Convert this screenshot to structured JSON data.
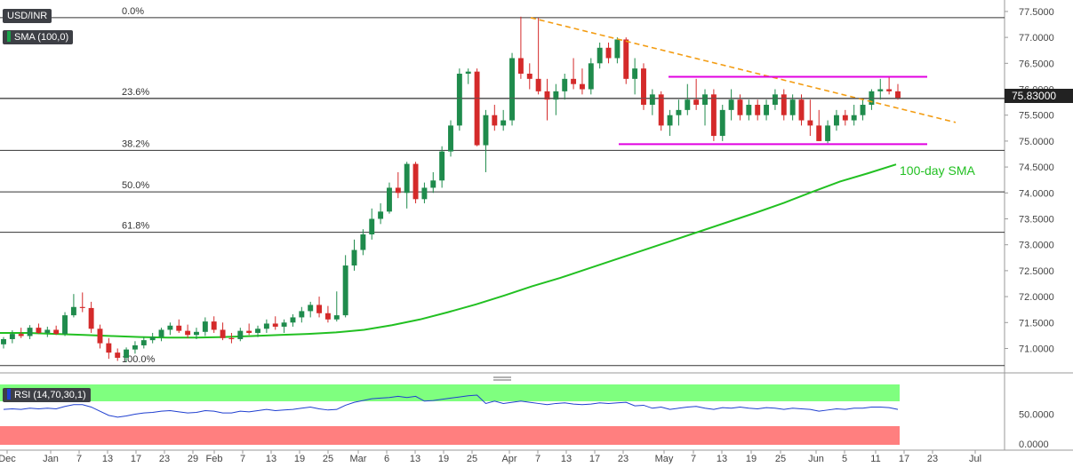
{
  "symbol": "USD/INR",
  "indicators": {
    "sma_label": "SMA (100,0)",
    "rsi_label": "RSI (14,70,30,1)"
  },
  "colors": {
    "up": "#1f8b4c",
    "down": "#d42a2a",
    "sma": "#22c022",
    "trend": "#f39c12",
    "channel": "#e000e0",
    "rsi_line": "#1f3fd0",
    "rsi_overbought_zone": "#7fff7f",
    "rsi_oversold_zone": "#ff7f7f",
    "price_tag": "#222222"
  },
  "chart_data": [
    {
      "type": "candlestick",
      "title": "USD/INR",
      "ylim": [
        70.7,
        77.55
      ],
      "y_ticks": [
        "71.0000",
        "71.5000",
        "72.0000",
        "72.5000",
        "73.0000",
        "73.5000",
        "74.0000",
        "74.5000",
        "75.0000",
        "75.5000",
        "76.0000",
        "76.5000",
        "77.0000",
        "77.5000"
      ],
      "x_ticks": [
        "Dec",
        "Jan",
        "7",
        "13",
        "17",
        "23",
        "29",
        "Feb",
        "7",
        "13",
        "19",
        "25",
        "Mar",
        "6",
        "13",
        "19",
        "25",
        "Apr",
        "7",
        "13",
        "17",
        "23",
        "May",
        "7",
        "13",
        "19",
        "25",
        "Jun",
        "5",
        "11",
        "17",
        "23",
        "Jul"
      ],
      "last_price": "75.83000",
      "fibonacci": [
        {
          "label": "0.0%",
          "value": 77.38
        },
        {
          "label": "23.6%",
          "value": 75.82
        },
        {
          "label": "38.2%",
          "value": 74.82
        },
        {
          "label": "50.0%",
          "value": 74.02
        },
        {
          "label": "61.8%",
          "value": 73.24
        },
        {
          "label": "100.0%",
          "value": 70.67
        }
      ],
      "annotations": [
        {
          "label": "100-day SMA"
        }
      ],
      "trendline": {
        "from": 77.38,
        "to": 75.36
      },
      "channel": {
        "upper": 76.24,
        "lower": 74.94
      },
      "sma_100": [
        71.3,
        71.3,
        71.28,
        71.26,
        71.24,
        71.22,
        71.21,
        71.21,
        71.22,
        71.24,
        71.26,
        71.28,
        71.31,
        71.36,
        71.45,
        71.56,
        71.7,
        71.85,
        72.02,
        72.2,
        72.36,
        72.54,
        72.72,
        72.9,
        73.08,
        73.26,
        73.44,
        73.62,
        73.81,
        74.02,
        74.22,
        74.38,
        74.55
      ],
      "candles": [
        {
          "o": 71.08,
          "h": 71.22,
          "l": 71.0,
          "c": 71.18
        },
        {
          "o": 71.18,
          "h": 71.35,
          "l": 71.1,
          "c": 71.28
        },
        {
          "o": 71.28,
          "h": 71.4,
          "l": 71.2,
          "c": 71.24
        },
        {
          "o": 71.24,
          "h": 71.45,
          "l": 71.18,
          "c": 71.4
        },
        {
          "o": 71.4,
          "h": 71.48,
          "l": 71.28,
          "c": 71.3
        },
        {
          "o": 71.3,
          "h": 71.42,
          "l": 71.22,
          "c": 71.36
        },
        {
          "o": 71.36,
          "h": 71.44,
          "l": 71.26,
          "c": 71.28
        },
        {
          "o": 71.28,
          "h": 71.7,
          "l": 71.24,
          "c": 71.64
        },
        {
          "o": 71.64,
          "h": 72.05,
          "l": 71.6,
          "c": 71.8
        },
        {
          "o": 71.8,
          "h": 72.08,
          "l": 71.7,
          "c": 71.78
        },
        {
          "o": 71.78,
          "h": 71.9,
          "l": 71.3,
          "c": 71.38
        },
        {
          "o": 71.38,
          "h": 71.46,
          "l": 71.0,
          "c": 71.1
        },
        {
          "o": 71.1,
          "h": 71.2,
          "l": 70.8,
          "c": 70.92
        },
        {
          "o": 70.92,
          "h": 71.0,
          "l": 70.76,
          "c": 70.82
        },
        {
          "o": 70.82,
          "h": 71.02,
          "l": 70.74,
          "c": 70.98
        },
        {
          "o": 70.98,
          "h": 71.14,
          "l": 70.9,
          "c": 71.06
        },
        {
          "o": 71.06,
          "h": 71.22,
          "l": 71.0,
          "c": 71.16
        },
        {
          "o": 71.16,
          "h": 71.3,
          "l": 71.1,
          "c": 71.22
        },
        {
          "o": 71.22,
          "h": 71.4,
          "l": 71.14,
          "c": 71.36
        },
        {
          "o": 71.36,
          "h": 71.5,
          "l": 71.26,
          "c": 71.44
        },
        {
          "o": 71.44,
          "h": 71.56,
          "l": 71.3,
          "c": 71.34
        },
        {
          "o": 71.34,
          "h": 71.46,
          "l": 71.2,
          "c": 71.26
        },
        {
          "o": 71.26,
          "h": 71.4,
          "l": 71.18,
          "c": 71.32
        },
        {
          "o": 71.32,
          "h": 71.6,
          "l": 71.24,
          "c": 71.52
        },
        {
          "o": 71.52,
          "h": 71.62,
          "l": 71.3,
          "c": 71.36
        },
        {
          "o": 71.36,
          "h": 71.5,
          "l": 71.16,
          "c": 71.2
        },
        {
          "o": 71.2,
          "h": 71.3,
          "l": 71.1,
          "c": 71.18
        },
        {
          "o": 71.18,
          "h": 71.4,
          "l": 71.14,
          "c": 71.34
        },
        {
          "o": 71.34,
          "h": 71.48,
          "l": 71.26,
          "c": 71.3
        },
        {
          "o": 71.3,
          "h": 71.44,
          "l": 71.22,
          "c": 71.38
        },
        {
          "o": 71.38,
          "h": 71.56,
          "l": 71.3,
          "c": 71.48
        },
        {
          "o": 71.48,
          "h": 71.62,
          "l": 71.36,
          "c": 71.42
        },
        {
          "o": 71.42,
          "h": 71.56,
          "l": 71.3,
          "c": 71.5
        },
        {
          "o": 71.5,
          "h": 71.66,
          "l": 71.42,
          "c": 71.6
        },
        {
          "o": 71.6,
          "h": 71.8,
          "l": 71.5,
          "c": 71.72
        },
        {
          "o": 71.72,
          "h": 71.9,
          "l": 71.6,
          "c": 71.84
        },
        {
          "o": 71.84,
          "h": 72.0,
          "l": 71.6,
          "c": 71.68
        },
        {
          "o": 71.68,
          "h": 71.82,
          "l": 71.5,
          "c": 71.56
        },
        {
          "o": 71.56,
          "h": 72.1,
          "l": 71.52,
          "c": 71.64
        },
        {
          "o": 71.64,
          "h": 72.8,
          "l": 71.6,
          "c": 72.6
        },
        {
          "o": 72.6,
          "h": 73.1,
          "l": 72.5,
          "c": 72.9
        },
        {
          "o": 72.9,
          "h": 73.3,
          "l": 72.8,
          "c": 73.2
        },
        {
          "o": 73.2,
          "h": 73.7,
          "l": 73.1,
          "c": 73.5
        },
        {
          "o": 73.5,
          "h": 73.8,
          "l": 73.4,
          "c": 73.64
        },
        {
          "o": 73.64,
          "h": 74.2,
          "l": 73.6,
          "c": 74.1
        },
        {
          "o": 74.1,
          "h": 74.4,
          "l": 73.9,
          "c": 74.0
        },
        {
          "o": 74.0,
          "h": 74.6,
          "l": 73.7,
          "c": 74.56
        },
        {
          "o": 74.56,
          "h": 74.6,
          "l": 73.8,
          "c": 73.88
        },
        {
          "o": 73.88,
          "h": 74.2,
          "l": 73.8,
          "c": 74.1
        },
        {
          "o": 74.1,
          "h": 74.4,
          "l": 74.0,
          "c": 74.24
        },
        {
          "o": 74.24,
          "h": 74.9,
          "l": 74.1,
          "c": 74.8
        },
        {
          "o": 74.8,
          "h": 75.4,
          "l": 74.7,
          "c": 75.3
        },
        {
          "o": 75.3,
          "h": 76.4,
          "l": 75.2,
          "c": 76.3
        },
        {
          "o": 76.3,
          "h": 76.4,
          "l": 76.1,
          "c": 76.34
        },
        {
          "o": 76.34,
          "h": 76.4,
          "l": 74.9,
          "c": 74.92
        },
        {
          "o": 74.92,
          "h": 75.6,
          "l": 74.4,
          "c": 75.5
        },
        {
          "o": 75.5,
          "h": 75.7,
          "l": 75.2,
          "c": 75.3
        },
        {
          "o": 75.3,
          "h": 75.6,
          "l": 75.2,
          "c": 75.4
        },
        {
          "o": 75.4,
          "h": 76.7,
          "l": 75.3,
          "c": 76.6
        },
        {
          "o": 76.6,
          "h": 77.4,
          "l": 76.2,
          "c": 76.3
        },
        {
          "o": 76.3,
          "h": 76.5,
          "l": 76.0,
          "c": 76.2
        },
        {
          "o": 76.2,
          "h": 77.38,
          "l": 75.9,
          "c": 75.96
        },
        {
          "o": 75.96,
          "h": 76.2,
          "l": 75.4,
          "c": 75.8
        },
        {
          "o": 75.8,
          "h": 76.1,
          "l": 75.5,
          "c": 75.96
        },
        {
          "o": 75.96,
          "h": 76.3,
          "l": 75.8,
          "c": 76.2
        },
        {
          "o": 76.2,
          "h": 76.6,
          "l": 76.0,
          "c": 76.1
        },
        {
          "o": 76.1,
          "h": 76.4,
          "l": 75.9,
          "c": 76.0
        },
        {
          "o": 76.0,
          "h": 76.6,
          "l": 75.9,
          "c": 76.5
        },
        {
          "o": 76.5,
          "h": 76.9,
          "l": 76.4,
          "c": 76.8
        },
        {
          "o": 76.8,
          "h": 76.9,
          "l": 76.5,
          "c": 76.6
        },
        {
          "o": 76.6,
          "h": 77.0,
          "l": 76.5,
          "c": 76.96
        },
        {
          "o": 76.96,
          "h": 77.0,
          "l": 76.1,
          "c": 76.2
        },
        {
          "o": 76.2,
          "h": 76.6,
          "l": 75.9,
          "c": 76.4
        },
        {
          "o": 76.4,
          "h": 76.5,
          "l": 75.6,
          "c": 75.7
        },
        {
          "o": 75.7,
          "h": 76.0,
          "l": 75.5,
          "c": 75.9
        },
        {
          "o": 75.9,
          "h": 75.96,
          "l": 75.2,
          "c": 75.3
        },
        {
          "o": 75.3,
          "h": 75.6,
          "l": 75.1,
          "c": 75.5
        },
        {
          "o": 75.5,
          "h": 75.8,
          "l": 75.3,
          "c": 75.6
        },
        {
          "o": 75.6,
          "h": 76.1,
          "l": 75.5,
          "c": 75.8
        },
        {
          "o": 75.8,
          "h": 76.2,
          "l": 75.6,
          "c": 75.7
        },
        {
          "o": 75.7,
          "h": 76.0,
          "l": 75.3,
          "c": 75.9
        },
        {
          "o": 75.9,
          "h": 76.0,
          "l": 75.0,
          "c": 75.1
        },
        {
          "o": 75.1,
          "h": 75.7,
          "l": 75.0,
          "c": 75.6
        },
        {
          "o": 75.6,
          "h": 76.0,
          "l": 75.4,
          "c": 75.8
        },
        {
          "o": 75.8,
          "h": 75.9,
          "l": 75.4,
          "c": 75.5
        },
        {
          "o": 75.5,
          "h": 75.8,
          "l": 75.4,
          "c": 75.7
        },
        {
          "o": 75.7,
          "h": 75.8,
          "l": 75.4,
          "c": 75.5
        },
        {
          "o": 75.5,
          "h": 75.8,
          "l": 75.4,
          "c": 75.7
        },
        {
          "o": 75.7,
          "h": 76.0,
          "l": 75.6,
          "c": 75.9
        },
        {
          "o": 75.9,
          "h": 76.0,
          "l": 75.4,
          "c": 75.5
        },
        {
          "o": 75.5,
          "h": 75.9,
          "l": 75.4,
          "c": 75.8
        },
        {
          "o": 75.8,
          "h": 75.9,
          "l": 75.3,
          "c": 75.4
        },
        {
          "o": 75.4,
          "h": 75.8,
          "l": 75.1,
          "c": 75.3
        },
        {
          "o": 75.3,
          "h": 75.6,
          "l": 75.0,
          "c": 75.0
        },
        {
          "o": 75.0,
          "h": 75.4,
          "l": 74.96,
          "c": 75.3
        },
        {
          "o": 75.3,
          "h": 75.6,
          "l": 75.2,
          "c": 75.5
        },
        {
          "o": 75.5,
          "h": 75.6,
          "l": 75.3,
          "c": 75.4
        },
        {
          "o": 75.4,
          "h": 75.7,
          "l": 75.3,
          "c": 75.5
        },
        {
          "o": 75.5,
          "h": 75.8,
          "l": 75.4,
          "c": 75.7
        },
        {
          "o": 75.7,
          "h": 76.0,
          "l": 75.6,
          "c": 75.96
        },
        {
          "o": 75.96,
          "h": 76.2,
          "l": 75.8,
          "c": 76.0
        },
        {
          "o": 76.0,
          "h": 76.24,
          "l": 75.9,
          "c": 75.96
        },
        {
          "o": 75.96,
          "h": 76.1,
          "l": 75.8,
          "c": 75.83
        }
      ]
    },
    {
      "type": "line",
      "title": "RSI (14,70,30,1)",
      "ylim": [
        0,
        100
      ],
      "y_ticks": [
        "0.0000",
        "50.0000"
      ],
      "bands": {
        "overbought": 70,
        "oversold": 30
      },
      "values": [
        58,
        59,
        58,
        60,
        59,
        60,
        59,
        63,
        66,
        66,
        62,
        55,
        48,
        45,
        47,
        50,
        52,
        53,
        55,
        56,
        54,
        52,
        53,
        56,
        55,
        52,
        52,
        55,
        54,
        56,
        58,
        56,
        57,
        58,
        60,
        62,
        59,
        57,
        58,
        65,
        70,
        73,
        76,
        77,
        78,
        80,
        78,
        80,
        72,
        73,
        75,
        77,
        79,
        81,
        82,
        68,
        72,
        68,
        70,
        72,
        70,
        68,
        66,
        68,
        69,
        67,
        66,
        67,
        69,
        68,
        69,
        70,
        64,
        65,
        60,
        62,
        58,
        60,
        62,
        63,
        60,
        58,
        61,
        60,
        62,
        60,
        59,
        61,
        60,
        58,
        60,
        59,
        58,
        55,
        57,
        59,
        58,
        60,
        60,
        62,
        62,
        61,
        58
      ]
    }
  ]
}
